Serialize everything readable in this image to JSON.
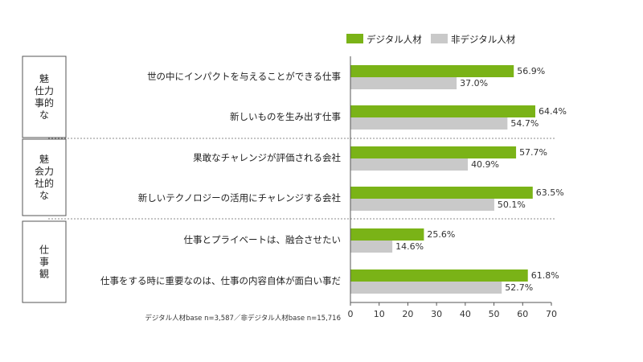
{
  "chart_data": {
    "type": "bar",
    "orientation": "horizontal",
    "categories": [
      "世の中にインパクトを与えることができる仕事",
      "新しいものを生み出す仕事",
      "果敢なチャレンジが評価される会社",
      "新しいテクノロジーの活用にチャレンジする会社",
      "仕事とプライベートは、融合させたい",
      "仕事をする時に重要なのは、仕事の内容自体が面白い事だ"
    ],
    "groups": [
      {
        "label": "魅力的な仕事",
        "lines": [
          "魅",
          "仕力",
          "事的",
          "な"
        ],
        "category_count": 2
      },
      {
        "label": "魅力的な会社",
        "lines": [
          "魅",
          "会力",
          "社的",
          "な"
        ],
        "category_count": 2
      },
      {
        "label": "仕事観",
        "lines": [
          "仕",
          "事",
          "観"
        ],
        "category_count": 2
      }
    ],
    "series": [
      {
        "name": "デジタル人材",
        "color": "#7ab317",
        "values": [
          56.9,
          64.4,
          57.7,
          63.5,
          25.6,
          61.8
        ]
      },
      {
        "name": "非デジタル人材",
        "color": "#c9c9c9",
        "values": [
          37.0,
          54.7,
          40.9,
          50.1,
          14.6,
          52.7
        ]
      }
    ],
    "value_labels": [
      [
        "56.9%",
        "64.4%",
        "57.7%",
        "63.5%",
        "25.6%",
        "61.8%"
      ],
      [
        "37.0%",
        "54.7%",
        "40.9%",
        "50.1%",
        "14.6%",
        "52.7%"
      ]
    ],
    "xlim": [
      0,
      70
    ],
    "xticks": [
      "0",
      "10",
      "20",
      "30",
      "40",
      "50",
      "60",
      "70"
    ],
    "legend_position": "top-right",
    "grid": false,
    "note": "デジタル人材base n=3,587／非デジタル人材base n=15,716"
  }
}
